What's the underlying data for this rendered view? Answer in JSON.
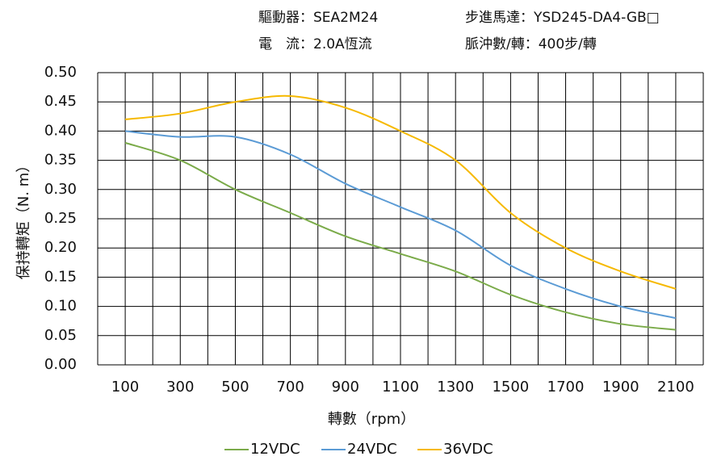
{
  "chart_data": {
    "type": "line",
    "header": [
      "驅動器：SEA2M24",
      "步進馬達：YSD245-DA4-GB□",
      "電　流：2.0A恆流",
      "脈沖數/轉：400步/轉"
    ],
    "xlabel": "轉數（rpm）",
    "ylabel": "保持轉矩（N. m）",
    "x": [
      100,
      300,
      500,
      700,
      900,
      1100,
      1300,
      1500,
      1700,
      1900,
      2100
    ],
    "series": [
      {
        "name": "12VDC",
        "color": "#7bab4a",
        "values": [
          0.38,
          0.35,
          0.3,
          0.26,
          0.22,
          0.19,
          0.16,
          0.12,
          0.09,
          0.07,
          0.06
        ]
      },
      {
        "name": "24VDC",
        "color": "#5b9bd5",
        "values": [
          0.4,
          0.39,
          0.39,
          0.36,
          0.31,
          0.27,
          0.23,
          0.17,
          0.13,
          0.1,
          0.08
        ]
      },
      {
        "name": "36VDC",
        "color": "#f6b900",
        "values": [
          0.42,
          0.43,
          0.45,
          0.46,
          0.44,
          0.4,
          0.35,
          0.26,
          0.2,
          0.16,
          0.13
        ]
      }
    ],
    "xlim": [
      0,
      2200
    ],
    "xticks": [
      100,
      300,
      500,
      700,
      900,
      1100,
      1300,
      1500,
      1700,
      1900,
      2100
    ],
    "xgrid": [
      0,
      100,
      200,
      300,
      400,
      500,
      600,
      700,
      800,
      900,
      1000,
      1100,
      1200,
      1300,
      1400,
      1500,
      1600,
      1700,
      1800,
      1900,
      2000,
      2100,
      2200
    ],
    "ylim": [
      0,
      0.5
    ],
    "yticks": [
      {
        "value": 0,
        "label": "0.00"
      },
      0.05,
      {
        "value": 0.1,
        "label": "0.10"
      },
      0.15,
      {
        "value": 0.2,
        "label": "0.20"
      },
      0.25,
      {
        "value": 0.3,
        "label": "0.30"
      },
      0.35,
      {
        "value": 0.4,
        "label": "0.40"
      },
      0.45,
      {
        "value": 0.5,
        "label": "0.50"
      }
    ],
    "grid": true,
    "legend": "bottom"
  }
}
